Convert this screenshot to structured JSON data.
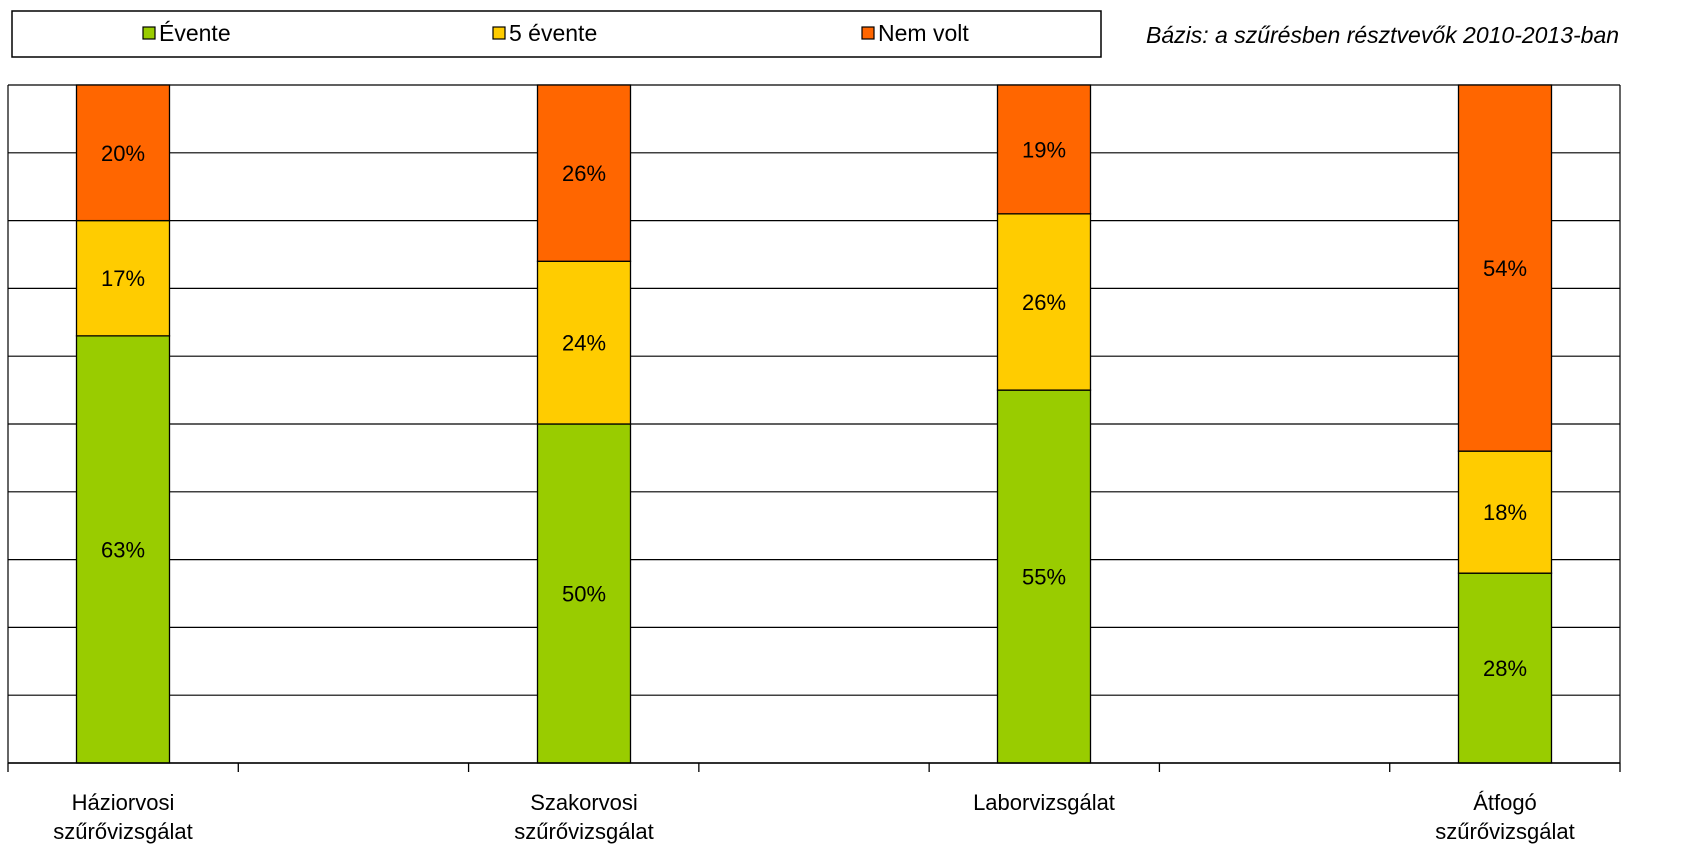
{
  "basis_note": "Bázis: a szűrésben résztvevők 2010-2013-ban",
  "chart_data": {
    "type": "bar",
    "stacked": true,
    "ylim": [
      0,
      100
    ],
    "grid": true,
    "legend_position": "top",
    "categories": [
      [
        "Háziorvosi",
        "szűrővizsgálat"
      ],
      [
        "Szakorvosi",
        "szűrővizsgálat"
      ],
      [
        "Laborvizsgálat"
      ],
      [
        "Átfogó",
        "szűrővizsgálat"
      ]
    ],
    "series": [
      {
        "name": "Évente",
        "color": "#99cc00",
        "values": [
          63,
          50,
          55,
          28
        ],
        "labels": [
          "63%",
          "50%",
          "55%",
          "28%"
        ]
      },
      {
        "name": "5 évente",
        "color": "#ffcc00",
        "values": [
          17,
          24,
          26,
          18
        ],
        "labels": [
          "17%",
          "24%",
          "26%",
          "18%"
        ]
      },
      {
        "name": "Nem volt",
        "color": "#ff6600",
        "values": [
          20,
          26,
          19,
          54
        ],
        "labels": [
          "20%",
          "26%",
          "19%",
          "54%"
        ]
      }
    ]
  }
}
